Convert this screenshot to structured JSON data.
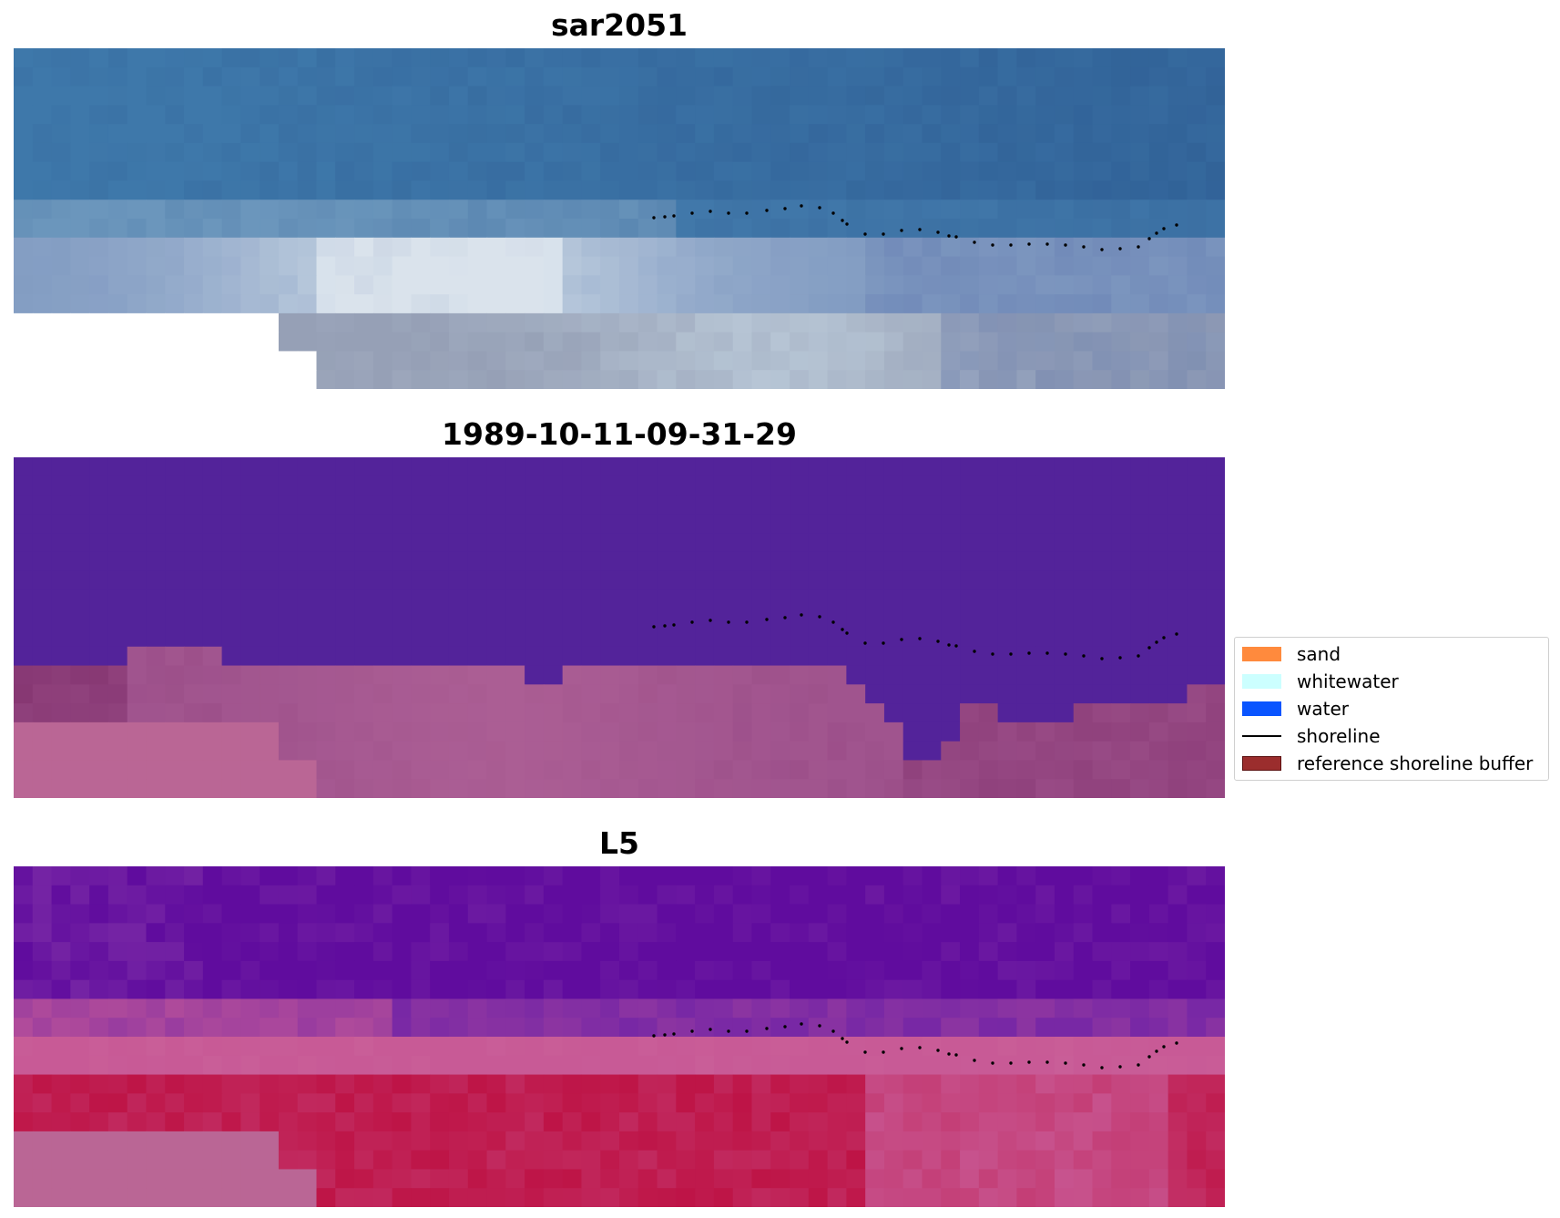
{
  "panels": [
    {
      "title": "sar2051",
      "image": "rgb-composite"
    },
    {
      "title": "1989-10-11-09-31-29",
      "image": "classified-overlay"
    },
    {
      "title": "L5",
      "image": "index-map"
    }
  ],
  "legend": {
    "items": [
      {
        "label": "sand",
        "color": "#ff8a3d",
        "kind": "patch"
      },
      {
        "label": "whitewater",
        "color": "#ccffff",
        "kind": "patch"
      },
      {
        "label": "water",
        "color": "#0a55ff",
        "kind": "patch"
      },
      {
        "label": "shoreline",
        "color": "#000000",
        "kind": "line"
      },
      {
        "label": "reference shoreline buffer",
        "color": "#9b2d2d",
        "kind": "patch"
      }
    ]
  },
  "colors": {
    "sea_blue": "#3a6ea5",
    "class_water": "#53239a",
    "class_land": "#a25490",
    "index_water": "#5e0d9e",
    "index_land": "#c01a4e",
    "nodata": "#ffffff",
    "nodata_overlay": "#ba6695"
  }
}
